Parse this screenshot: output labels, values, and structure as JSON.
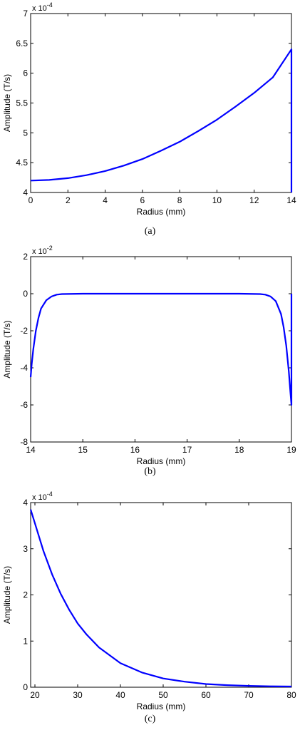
{
  "chart_data": [
    {
      "type": "line",
      "caption": "(a)",
      "exponent": "x 10",
      "exponent_power": "-4",
      "xlabel": "Radius (mm)",
      "ylabel": "Amplitude (T/s)",
      "xlim": [
        0,
        14
      ],
      "ylim": [
        4,
        7
      ],
      "xticks": [
        "0",
        "2",
        "4",
        "6",
        "8",
        "10",
        "12",
        "14"
      ],
      "yticks": [
        "4",
        "4.5",
        "5",
        "5.5",
        "6",
        "6.5",
        "7"
      ],
      "grid": false,
      "series": [
        {
          "color": "#0000ff",
          "x": [
            0,
            1,
            2,
            3,
            4,
            5,
            6,
            7,
            8,
            9,
            10,
            11,
            12,
            13,
            14,
            14
          ],
          "y": [
            4.2,
            4.21,
            4.24,
            4.29,
            4.36,
            4.45,
            4.56,
            4.7,
            4.85,
            5.03,
            5.22,
            5.44,
            5.67,
            5.93,
            6.4,
            4.0
          ]
        }
      ]
    },
    {
      "type": "line",
      "caption": "(b)",
      "exponent": "x 10",
      "exponent_power": "-2",
      "xlabel": "Radius (mm)",
      "ylabel": "Amplitude (T/s)",
      "xlim": [
        14,
        19
      ],
      "ylim": [
        -8,
        2
      ],
      "xticks": [
        "14",
        "15",
        "16",
        "17",
        "18",
        "19"
      ],
      "yticks": [
        "-8",
        "-6",
        "-4",
        "-2",
        "0",
        "2"
      ],
      "grid": false,
      "series": [
        {
          "color": "#0000ff",
          "x": [
            14.0,
            14.02,
            14.05,
            14.1,
            14.15,
            14.2,
            14.3,
            14.4,
            14.5,
            14.6,
            15.0,
            16.0,
            17.0,
            18.0,
            18.4,
            18.5,
            18.6,
            18.7,
            18.8,
            18.85,
            18.9,
            18.95,
            18.98,
            19.0,
            19.0
          ],
          "y": [
            -4.5,
            -3.8,
            -3.0,
            -2.0,
            -1.3,
            -0.8,
            -0.35,
            -0.15,
            -0.05,
            -0.02,
            0.0,
            0.0,
            0.0,
            0.0,
            -0.02,
            -0.05,
            -0.15,
            -0.4,
            -1.1,
            -1.8,
            -2.8,
            -4.2,
            -5.3,
            -6.0,
            0.0
          ]
        }
      ]
    },
    {
      "type": "line",
      "caption": "(c)",
      "exponent": "x 10",
      "exponent_power": "-4",
      "xlabel": "Radius (mm)",
      "ylabel": "Amplitude (T/s)",
      "xlim": [
        19,
        80
      ],
      "ylim": [
        0,
        4
      ],
      "xticks": [
        "20",
        "30",
        "40",
        "50",
        "60",
        "70",
        "80"
      ],
      "yticks": [
        "0",
        "1",
        "2",
        "3",
        "4"
      ],
      "grid": false,
      "series": [
        {
          "color": "#0000ff",
          "x": [
            19,
            20,
            22,
            24,
            26,
            28,
            30,
            32,
            35,
            40,
            45,
            50,
            55,
            60,
            65,
            70,
            75,
            80
          ],
          "y": [
            3.85,
            3.55,
            2.95,
            2.45,
            2.03,
            1.68,
            1.38,
            1.15,
            0.86,
            0.52,
            0.32,
            0.19,
            0.12,
            0.07,
            0.045,
            0.03,
            0.02,
            0.015
          ]
        }
      ]
    }
  ]
}
